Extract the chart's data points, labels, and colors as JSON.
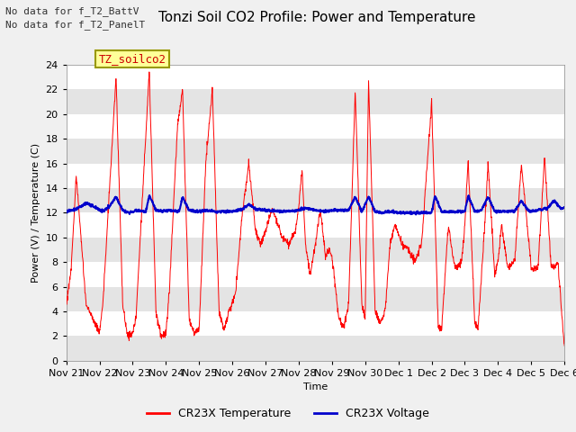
{
  "title": "Tonzi Soil CO2 Profile: Power and Temperature",
  "xlabel": "Time",
  "ylabel": "Power (V) / Temperature (C)",
  "annotations": [
    "No data for f_T2_BattV",
    "No data for f_T2_PanelT"
  ],
  "legend_label": "TZ_soilco2",
  "legend_entry1": "CR23X Temperature",
  "legend_entry2": "CR23X Voltage",
  "color_temp": "#ff0000",
  "color_volt": "#0000cc",
  "background_color": "#f0f0f0",
  "ylim": [
    0,
    24
  ],
  "yticks": [
    0,
    2,
    4,
    6,
    8,
    10,
    12,
    14,
    16,
    18,
    20,
    22,
    24
  ],
  "x_tick_labels": [
    "Nov 21",
    "Nov 22",
    "Nov 23",
    "Nov 24",
    "Nov 25",
    "Nov 26",
    "Nov 27",
    "Nov 28",
    "Nov 29",
    "Nov 30",
    "Dec 1",
    "Dec 2",
    "Dec 3",
    "Dec 4",
    "Dec 5",
    "Dec 6"
  ],
  "title_fontsize": 11,
  "axis_fontsize": 8,
  "tick_fontsize": 8,
  "annot_fontsize": 8
}
